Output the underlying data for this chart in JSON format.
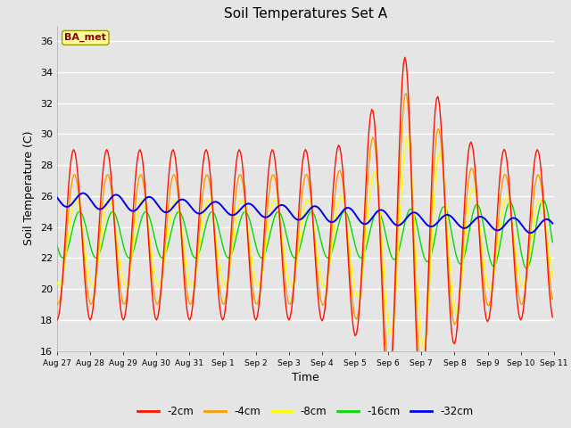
{
  "title": "Soil Temperatures Set A",
  "xlabel": "Time",
  "ylabel": "Soil Temperature (C)",
  "ylim": [
    16,
    37
  ],
  "yticks": [
    16,
    18,
    20,
    22,
    24,
    26,
    28,
    30,
    32,
    34,
    36
  ],
  "plot_bg_color": "#e5e5e5",
  "annotation_text": "BA_met",
  "annotation_bg": "#ffff99",
  "annotation_border": "#999900",
  "annotation_text_color": "#880000",
  "series_colors": {
    "-2cm": "#ff1100",
    "-4cm": "#ff9900",
    "-8cm": "#ffff00",
    "-16cm": "#00dd00",
    "-32cm": "#0000ee"
  },
  "date_labels": [
    "Aug 27",
    "Aug 28",
    "Aug 29",
    "Aug 30",
    "Aug 31",
    "Sep 1",
    "Sep 2",
    "Sep 3",
    "Sep 4",
    "Sep 5",
    "Sep 6",
    "Sep 7",
    "Sep 8",
    "Sep 9",
    "Sep 10",
    "Sep 11"
  ]
}
